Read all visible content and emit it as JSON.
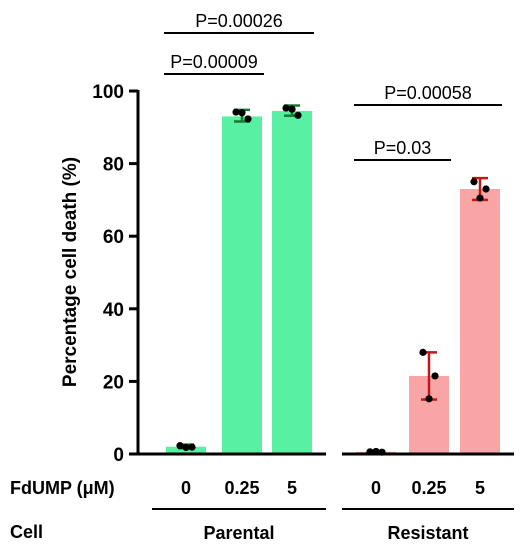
{
  "chart_data": {
    "type": "bar",
    "ylabel": "Percentage cell death (%)",
    "ylim": [
      0,
      100
    ],
    "yticks": [
      0,
      20,
      40,
      60,
      80,
      100
    ],
    "treatment_label": "FdUMP (μM)",
    "cell_label": "Cell",
    "groups": [
      {
        "name": "Parental",
        "color": "#58f0a2",
        "error_color": "#1a7a2e",
        "bars": [
          {
            "category": "0",
            "value": 2.0,
            "err_low": 1.6,
            "err_high": 2.6,
            "points": [
              2.3,
              1.9,
              1.8
            ]
          },
          {
            "category": "0.25",
            "value": 93.0,
            "err_low": 91.6,
            "err_high": 94.8,
            "points": [
              94.2,
              92.3,
              94.0
            ]
          },
          {
            "category": "5",
            "value": 94.5,
            "err_low": 93.2,
            "err_high": 96.0,
            "points": [
              95.3,
              93.3,
              95.0
            ]
          }
        ]
      },
      {
        "name": "Resistant",
        "color": "#f9a5a5",
        "error_color": "#c01818",
        "bars": [
          {
            "category": "0",
            "value": 0.6,
            "err_low": 0.4,
            "err_high": 0.8,
            "points": [
              0.6,
              0.5,
              0.7
            ]
          },
          {
            "category": "0.25",
            "value": 21.5,
            "err_low": 15.0,
            "err_high": 28.0,
            "points": [
              28.0,
              21.5,
              15.2
            ]
          },
          {
            "category": "5",
            "value": 73.0,
            "err_low": 70.0,
            "err_high": 76.0,
            "points": [
              75.0,
              73.0,
              70.5
            ]
          }
        ]
      }
    ],
    "comparisons": [
      {
        "label": "P=0.00026",
        "from_bar": 0,
        "to_bar": 2
      },
      {
        "label": "P=0.00009",
        "from_bar": 0,
        "to_bar": 1
      },
      {
        "label": "P=0.00058",
        "from_bar": 3,
        "to_bar": 5
      },
      {
        "label": "P=0.03",
        "from_bar": 3,
        "to_bar": 4
      }
    ]
  }
}
